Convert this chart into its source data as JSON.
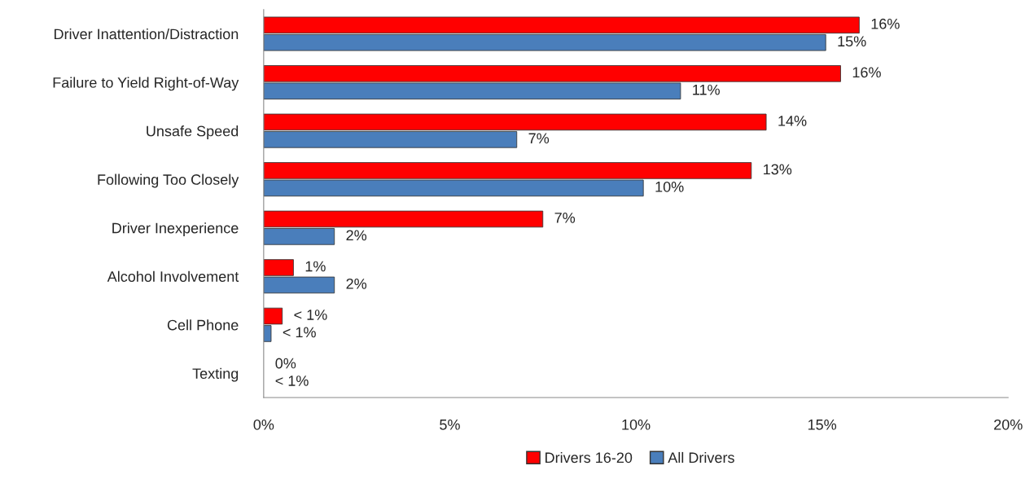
{
  "chart_data": {
    "type": "bar",
    "orientation": "horizontal",
    "categories": [
      "Driver Inattention/Distraction",
      "Failure to Yield Right-of-Way",
      "Unsafe Speed",
      "Following Too Closely",
      "Driver Inexperience",
      "Alcohol Involvement",
      "Cell Phone",
      "Texting"
    ],
    "series": [
      {
        "name": "Drivers 16-20",
        "color": "#ff0000",
        "values": [
          16.0,
          15.5,
          13.5,
          13.1,
          7.5,
          0.8,
          0.5,
          0
        ],
        "value_labels": [
          "16%",
          "16%",
          "14%",
          "13%",
          "7%",
          "1%",
          "< 1%",
          "0%"
        ]
      },
      {
        "name": "All Drivers",
        "color": "#4a7ebb",
        "values": [
          15.1,
          11.2,
          6.8,
          10.2,
          1.9,
          1.9,
          0.2,
          0
        ],
        "value_labels": [
          "15%",
          "11%",
          "7%",
          "10%",
          "2%",
          "2%",
          "< 1%",
          "< 1%"
        ]
      }
    ],
    "xlim": [
      0,
      20
    ],
    "xticks": [
      {
        "value": 0,
        "label": "0%"
      },
      {
        "value": 5,
        "label": "5%"
      },
      {
        "value": 10,
        "label": "10%"
      },
      {
        "value": 15,
        "label": "15%"
      },
      {
        "value": 20,
        "label": "20%"
      }
    ],
    "grid": false,
    "legend": "bottom"
  }
}
